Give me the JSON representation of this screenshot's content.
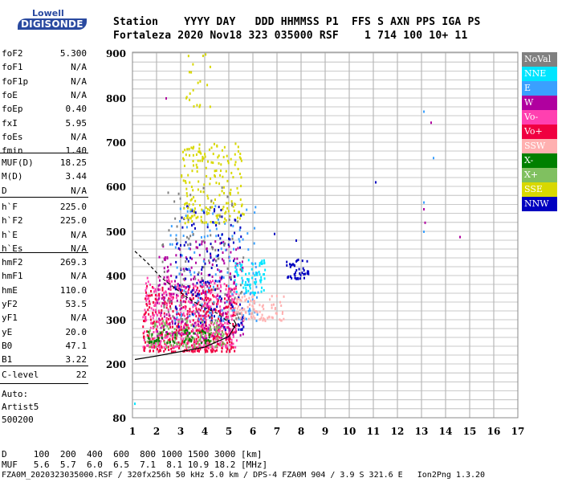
{
  "logo": {
    "top": "Lowell",
    "bottom": "DIGISONDE"
  },
  "header": {
    "row1": "Station    YYYY DAY   DDD HHMMSS P1  FFS S AXN PPS IGA PS",
    "row2": "Fortaleza 2020 Nov18 323 035000 RSF    1 714 100 10+ 11"
  },
  "params_top": [
    {
      "k": "foF2",
      "v": "5.300"
    },
    {
      "k": "foF1",
      "v": "N/A"
    },
    {
      "k": "foF1p",
      "v": "N/A"
    },
    {
      "k": "foE",
      "v": "N/A"
    },
    {
      "k": "foEp",
      "v": "0.40"
    },
    {
      "k": "fxI",
      "v": "5.95"
    },
    {
      "k": "foEs",
      "v": "N/A"
    },
    {
      "k": "fmin",
      "v": "1.40"
    }
  ],
  "params_muf": [
    {
      "k": "MUF(D)",
      "v": "18.25"
    },
    {
      "k": "M(D)",
      "v": "3.44"
    },
    {
      "k": "D",
      "v": "N/A"
    }
  ],
  "params_h": [
    {
      "k": "h`F",
      "v": "225.0"
    },
    {
      "k": "h`F2",
      "v": "225.0"
    },
    {
      "k": "h`E",
      "v": "N/A"
    },
    {
      "k": "h`Es",
      "v": "N/A"
    }
  ],
  "params_hm": [
    {
      "k": "hmF2",
      "v": "269.3"
    },
    {
      "k": "hmF1",
      "v": "N/A"
    },
    {
      "k": "hmE",
      "v": "110.0"
    },
    {
      "k": "yF2",
      "v": "53.5"
    },
    {
      "k": "yF1",
      "v": "N/A"
    },
    {
      "k": "yE",
      "v": "20.0"
    },
    {
      "k": "B0",
      "v": "47.1"
    },
    {
      "k": "B1",
      "v": "3.22"
    }
  ],
  "params_c": [
    {
      "k": "C-level",
      "v": "22"
    }
  ],
  "notes": {
    "auto": "Auto:",
    "artist": "Artist5",
    "code": "500200"
  },
  "legend": [
    {
      "label": "NoVal",
      "bg": "#808080",
      "fg": "#ffffff"
    },
    {
      "label": "NNE",
      "bg": "#00e5ff",
      "fg": "#ffffff"
    },
    {
      "label": "E",
      "bg": "#3aa0ff",
      "fg": "#ffffff"
    },
    {
      "label": "W",
      "bg": "#b0009f",
      "fg": "#ffffff"
    },
    {
      "label": "Vo-",
      "bg": "#ff40b0",
      "fg": "#ffffff"
    },
    {
      "label": "Vo+",
      "bg": "#f00040",
      "fg": "#ffffff"
    },
    {
      "label": "SSW",
      "bg": "#ffb0b0",
      "fg": "#ffffff"
    },
    {
      "label": "X-",
      "bg": "#008000",
      "fg": "#ffffff"
    },
    {
      "label": "X+",
      "bg": "#80c060",
      "fg": "#ffffff"
    },
    {
      "label": "SSE",
      "bg": "#d8d800",
      "fg": "#ffffff"
    },
    {
      "label": "NNW",
      "bg": "#0000c0",
      "fg": "#ffffff"
    }
  ],
  "footer": {
    "d_row": "D     100  200  400  600  800 1000 1500 3000 [km]",
    "muf_row": "MUF   5.6  5.7  6.0  6.5  7.1  8.1 10.9 18.2 [MHz]",
    "info_row": "FZA0M_2020323035000.RSF / 320fx256h 50 kHz 5.0 km / DPS-4 FZA0M 904 / 3.9 S 321.6 E   Ion2Png 1.3.20"
  },
  "chart_data": {
    "type": "scatter",
    "xlim": [
      1,
      17
    ],
    "ylim": [
      80,
      900
    ],
    "xticks": [
      "1",
      "2",
      "3",
      "4",
      "5",
      "6",
      "7",
      "8",
      "9",
      "10",
      "11",
      "12",
      "13",
      "14",
      "15",
      "16",
      "17"
    ],
    "yticks": [
      "80",
      "200",
      "300",
      "400",
      "500",
      "600",
      "700",
      "800",
      "900"
    ],
    "grid": true,
    "clusters": [
      {
        "color": "#f00040",
        "xr": [
          1.4,
          5.3
        ],
        "yr": [
          230,
          380
        ],
        "n": 500
      },
      {
        "color": "#ff40b0",
        "xr": [
          1.4,
          5.3
        ],
        "yr": [
          240,
          400
        ],
        "n": 380
      },
      {
        "color": "#b0009f",
        "xr": [
          2.0,
          5.6
        ],
        "yr": [
          260,
          480
        ],
        "n": 220
      },
      {
        "color": "#3aa0ff",
        "xr": [
          2.5,
          6.2
        ],
        "yr": [
          300,
          560
        ],
        "n": 150
      },
      {
        "color": "#00e5ff",
        "xr": [
          5.2,
          6.5
        ],
        "yr": [
          360,
          440
        ],
        "n": 70
      },
      {
        "color": "#0000c0",
        "xr": [
          2.7,
          5.6
        ],
        "yr": [
          280,
          560
        ],
        "n": 140
      },
      {
        "color": "#0000c0",
        "xr": [
          7.2,
          8.3
        ],
        "yr": [
          395,
          440
        ],
        "n": 45
      },
      {
        "color": "#d8d800",
        "xr": [
          3.0,
          5.6
        ],
        "yr": [
          520,
          700
        ],
        "n": 200
      },
      {
        "color": "#d8d800",
        "xr": [
          3.2,
          4.2
        ],
        "yr": [
          780,
          900
        ],
        "n": 20
      },
      {
        "color": "#80c060",
        "xr": [
          1.5,
          4.8
        ],
        "yr": [
          240,
          300
        ],
        "n": 110
      },
      {
        "color": "#ffb0b0",
        "xr": [
          5.2,
          7.3
        ],
        "yr": [
          300,
          360
        ],
        "n": 90
      },
      {
        "color": "#008000",
        "xr": [
          1.6,
          4.2
        ],
        "yr": [
          250,
          280
        ],
        "n": 55
      },
      {
        "color": "#808080",
        "xr": [
          2.2,
          5.6
        ],
        "yr": [
          300,
          600
        ],
        "n": 90
      }
    ],
    "points": [
      {
        "x": 11.1,
        "y": 610,
        "c": "#0000c0"
      },
      {
        "x": 13.1,
        "y": 770,
        "c": "#3aa0ff"
      },
      {
        "x": 13.4,
        "y": 745,
        "c": "#b0009f"
      },
      {
        "x": 13.5,
        "y": 665,
        "c": "#3aa0ff"
      },
      {
        "x": 13.1,
        "y": 565,
        "c": "#3aa0ff"
      },
      {
        "x": 13.1,
        "y": 550,
        "c": "#b0009f"
      },
      {
        "x": 13.15,
        "y": 520,
        "c": "#b0009f"
      },
      {
        "x": 13.1,
        "y": 500,
        "c": "#3aa0ff"
      },
      {
        "x": 14.6,
        "y": 488,
        "c": "#b0009f"
      },
      {
        "x": 1.1,
        "y": 112,
        "c": "#00e5ff"
      },
      {
        "x": 2.4,
        "y": 800,
        "c": "#b0009f"
      },
      {
        "x": 6.9,
        "y": 495,
        "c": "#0000c0"
      },
      {
        "x": 7.8,
        "y": 480,
        "c": "#0000c0"
      }
    ],
    "curves": {
      "bottom_profile": [
        [
          1.1,
          210
        ],
        [
          2,
          218
        ],
        [
          3,
          228
        ],
        [
          4,
          238
        ],
        [
          5,
          262
        ],
        [
          5.3,
          290
        ],
        [
          5.2,
          300
        ]
      ],
      "top_profile": [
        [
          1.1,
          455
        ],
        [
          1.6,
          430
        ],
        [
          2.2,
          395
        ],
        [
          2.8,
          370
        ],
        [
          3.4,
          345
        ],
        [
          3.9,
          330
        ],
        [
          4.5,
          315
        ],
        [
          5.1,
          290
        ],
        [
          5.3,
          280
        ]
      ]
    }
  }
}
